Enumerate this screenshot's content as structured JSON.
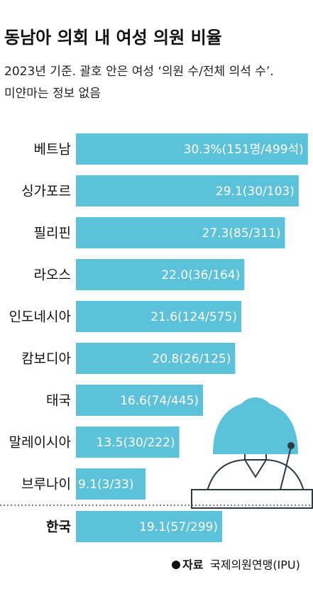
{
  "chart_data": {
    "type": "barh",
    "title": "동남아 의회 내 여성 의원 비율",
    "subtitle": [
      "2023년 기준. 괄호 안은 여성 ‘의원 수/전체 의석 수’.",
      "미얀마는 정보 없음"
    ],
    "categories": [
      "베트남",
      "싱가포르",
      "필리핀",
      "라오스",
      "인도네시아",
      "캄보디아",
      "태국",
      "말레이시아",
      "브루나이",
      "한국"
    ],
    "values": [
      30.3,
      29.1,
      27.3,
      22.0,
      21.6,
      20.8,
      16.6,
      13.5,
      9.1,
      19.1
    ],
    "value_labels": [
      "30.3%(151명/499석)",
      "29.1(30/103)",
      "27.3(85/311)",
      "22.0(36/164)",
      "21.6(124/575)",
      "20.8(26/125)",
      "16.6(74/445)",
      "13.5(30/222)",
      "9.1(3/33)",
      "19.1(57/299)"
    ],
    "color": "#5bc2da",
    "xlim": [
      0,
      30.5
    ],
    "source": {
      "label": "자료",
      "text": "국제의원연맹(IPU)"
    }
  }
}
